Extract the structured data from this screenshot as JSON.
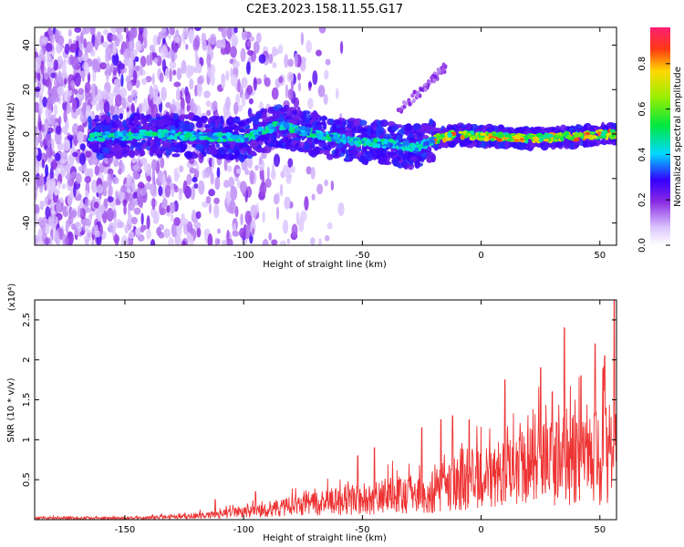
{
  "title": "C2E3.2023.158.11.55.G17",
  "chart_data": [
    {
      "type": "heatmap",
      "xlabel": "Height of straight line (km)",
      "ylabel": "Frequency (Hz)",
      "xlim": [
        -188,
        57
      ],
      "ylim": [
        -50,
        48
      ],
      "xticks": [
        -150,
        -100,
        -50,
        0,
        50
      ],
      "yticks": [
        -40,
        -20,
        0,
        20,
        40
      ],
      "colorbar": {
        "label": "Normalized spectral amplitude",
        "range": [
          0.0,
          0.96
        ],
        "ticks": [
          0.0,
          0.2,
          0.4,
          0.6,
          0.8
        ]
      },
      "ridge_centerline": [
        {
          "x": -160,
          "y": -1
        },
        {
          "x": -140,
          "y": 0
        },
        {
          "x": -120,
          "y": -1
        },
        {
          "x": -100,
          "y": -2
        },
        {
          "x": -85,
          "y": 4
        },
        {
          "x": -70,
          "y": 0
        },
        {
          "x": -55,
          "y": -3
        },
        {
          "x": -40,
          "y": -4
        },
        {
          "x": -28,
          "y": -6
        },
        {
          "x": -18,
          "y": -2
        },
        {
          "x": -10,
          "y": 0
        },
        {
          "x": 0,
          "y": -1
        },
        {
          "x": 20,
          "y": -2
        },
        {
          "x": 40,
          "y": -1
        },
        {
          "x": 55,
          "y": 0
        }
      ]
    },
    {
      "type": "line",
      "xlabel": "Height of straight line (km)",
      "ylabel": "SNR (10 * v/v)",
      "yunit": "(x10⁴)",
      "xlim": [
        -188,
        57
      ],
      "ylim": [
        0,
        2.75
      ],
      "xticks": [
        -150,
        -100,
        -50,
        0,
        50
      ],
      "yticks": [
        0.5,
        1.0,
        1.5,
        2.0,
        2.5
      ],
      "color": "#ee3333",
      "envelope": [
        {
          "x": -188,
          "y": 0.03
        },
        {
          "x": -150,
          "y": 0.03
        },
        {
          "x": -130,
          "y": 0.05
        },
        {
          "x": -110,
          "y": 0.1
        },
        {
          "x": -100,
          "y": 0.15
        },
        {
          "x": -80,
          "y": 0.25
        },
        {
          "x": -60,
          "y": 0.35
        },
        {
          "x": -40,
          "y": 0.45
        },
        {
          "x": -20,
          "y": 0.55
        },
        {
          "x": -10,
          "y": 0.7
        },
        {
          "x": 0,
          "y": 0.75
        },
        {
          "x": 10,
          "y": 0.9
        },
        {
          "x": 20,
          "y": 1.0
        },
        {
          "x": 30,
          "y": 1.1
        },
        {
          "x": 40,
          "y": 1.15
        },
        {
          "x": 50,
          "y": 1.2
        },
        {
          "x": 57,
          "y": 1.3
        }
      ],
      "peaks": [
        {
          "x": -112,
          "y": 0.25
        },
        {
          "x": -95,
          "y": 0.35
        },
        {
          "x": -52,
          "y": 0.8
        },
        {
          "x": -45,
          "y": 0.9
        },
        {
          "x": -25,
          "y": 1.15
        },
        {
          "x": -17,
          "y": 1.25
        },
        {
          "x": -12,
          "y": 1.3
        },
        {
          "x": -5,
          "y": 1.25
        },
        {
          "x": 10,
          "y": 1.75
        },
        {
          "x": 25,
          "y": 1.9
        },
        {
          "x": 30,
          "y": 1.6
        },
        {
          "x": 35,
          "y": 2.4
        },
        {
          "x": 42,
          "y": 1.8
        },
        {
          "x": 48,
          "y": 2.2
        },
        {
          "x": 52,
          "y": 2.05
        },
        {
          "x": 56,
          "y": 2.75
        }
      ]
    }
  ]
}
